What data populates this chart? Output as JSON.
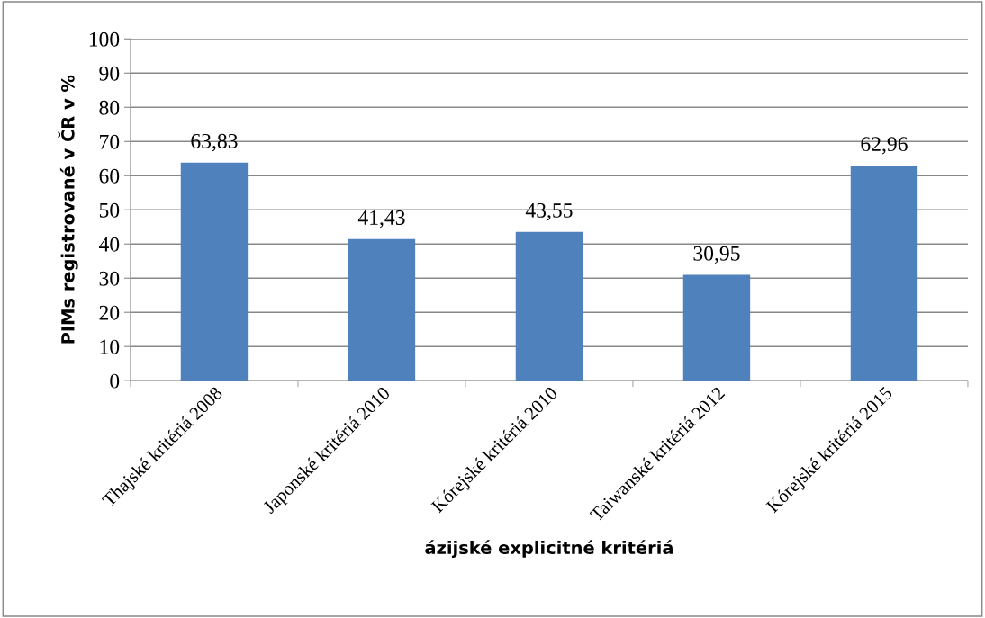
{
  "chart_data": {
    "type": "bar",
    "xlabel": "ázijské explicitné kritériá",
    "ylabel": "PIMs registrované v ČR v %",
    "categories": [
      "Thajské kritériá 2008",
      "Japonské kritériá 2010",
      "Kórejské kritériá 2010",
      "Taiwanské kritériá 2012",
      "Kórejské kritériá 2015"
    ],
    "values": [
      63.83,
      41.43,
      43.55,
      30.95,
      62.96
    ],
    "value_labels": [
      "63,83",
      "41,43",
      "43,55",
      "30,95",
      "62,96"
    ],
    "color": "#4f81bd",
    "ylim": [
      0,
      100
    ],
    "yticks": [
      0,
      10,
      20,
      30,
      40,
      50,
      60,
      70,
      80,
      90,
      100
    ],
    "grid": "y",
    "legend": false
  }
}
